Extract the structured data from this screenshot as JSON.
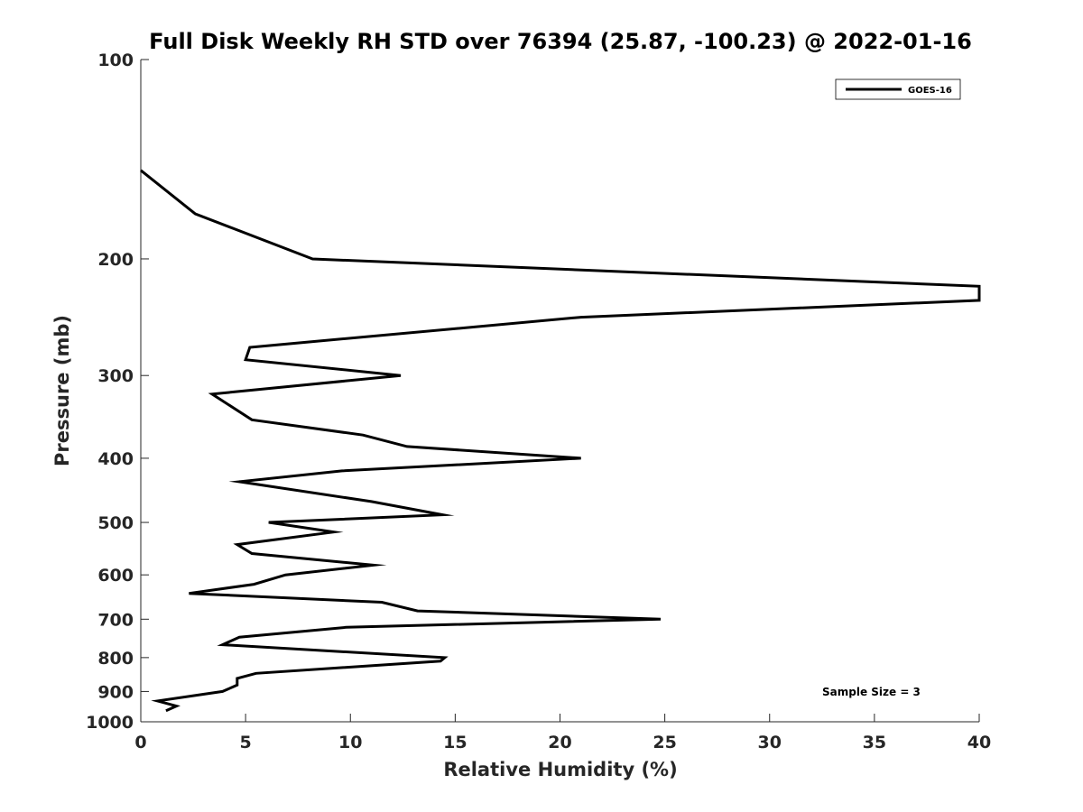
{
  "chart_data": {
    "type": "line",
    "title": "Full Disk Weekly RH STD over 76394 (25.87, -100.23) @ 2022-01-16",
    "xlabel": "Relative Humidity (%)",
    "ylabel": "Pressure (mb)",
    "xlim": [
      0,
      40
    ],
    "ylim": [
      100,
      1000
    ],
    "y_scale": "log",
    "y_reversed": true,
    "grid": false,
    "legend_position": "top-right",
    "x_ticks": [
      0,
      5,
      10,
      15,
      20,
      25,
      30,
      35,
      40
    ],
    "x_tick_labels": [
      "0",
      "5",
      "10",
      "15",
      "20",
      "25",
      "30",
      "35",
      "40"
    ],
    "y_ticks": [
      100,
      200,
      300,
      400,
      500,
      600,
      700,
      800,
      900,
      1000
    ],
    "y_tick_labels": [
      "100",
      "200",
      "300",
      "400",
      "500",
      "600",
      "700",
      "800",
      "900",
      "1000"
    ],
    "annotation": "Sample Size = 3",
    "series": [
      {
        "name": "GOES-16",
        "color": "#000000",
        "points": [
          [
            0.0,
            147
          ],
          [
            2.6,
            171
          ],
          [
            8.2,
            200
          ],
          [
            40.0,
            220
          ],
          [
            40.0,
            231
          ],
          [
            21.0,
            245
          ],
          [
            5.2,
            272
          ],
          [
            5.0,
            284
          ],
          [
            12.4,
            300
          ],
          [
            3.4,
            320
          ],
          [
            5.3,
            350
          ],
          [
            10.6,
            369
          ],
          [
            12.7,
            384
          ],
          [
            21.0,
            400
          ],
          [
            9.6,
            418
          ],
          [
            4.7,
            434
          ],
          [
            11.0,
            465
          ],
          [
            14.4,
            487
          ],
          [
            6.1,
            500
          ],
          [
            9.2,
            517
          ],
          [
            4.6,
            540
          ],
          [
            5.3,
            557
          ],
          [
            11.1,
            580
          ],
          [
            6.9,
            600
          ],
          [
            5.4,
            620
          ],
          [
            2.3,
            640
          ],
          [
            11.5,
            660
          ],
          [
            13.2,
            680
          ],
          [
            24.8,
            700
          ],
          [
            9.8,
            720
          ],
          [
            4.7,
            745
          ],
          [
            3.9,
            765
          ],
          [
            14.5,
            800
          ],
          [
            14.3,
            810
          ],
          [
            5.5,
            845
          ],
          [
            4.6,
            860
          ],
          [
            4.6,
            880
          ],
          [
            3.9,
            900
          ],
          [
            0.8,
            930
          ],
          [
            1.7,
            947
          ],
          [
            1.2,
            962
          ]
        ]
      }
    ]
  }
}
